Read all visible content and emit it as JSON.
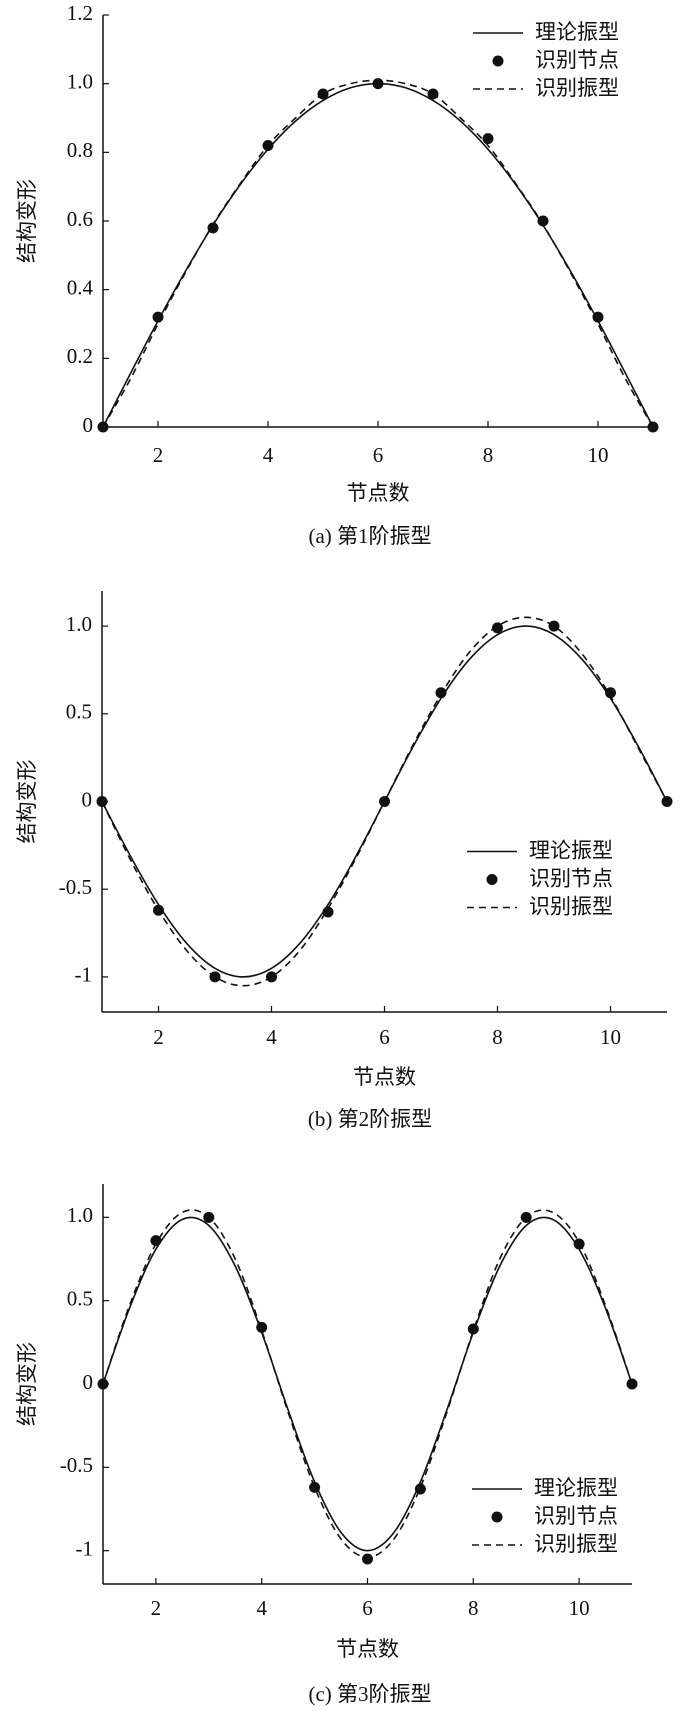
{
  "chart_data": [
    {
      "type": "line",
      "caption": "(a) 第1阶振型",
      "xlabel": "节点数",
      "ylabel": "结构变形",
      "xlim": [
        1,
        11
      ],
      "xticks": [
        2,
        4,
        6,
        8,
        10
      ],
      "ylim": [
        0,
        1.2
      ],
      "yticks": [
        0,
        0.2,
        0.4,
        0.6,
        0.8,
        {
          "value": 1,
          "label": "1.0"
        },
        1.2
      ],
      "legend": "upper right",
      "series": [
        {
          "name": "理论振型",
          "style": "solid",
          "color": "#111111",
          "x": [
            1,
            1.5,
            2,
            2.5,
            3,
            3.5,
            4,
            4.5,
            5,
            5.5,
            6,
            6.5,
            7,
            7.5,
            8,
            8.5,
            9,
            9.5,
            10,
            10.5,
            11
          ],
          "values": [
            0,
            0.156,
            0.309,
            0.454,
            0.588,
            0.707,
            0.809,
            0.891,
            0.951,
            0.988,
            1,
            0.988,
            0.951,
            0.891,
            0.809,
            0.707,
            0.588,
            0.454,
            0.309,
            0.156,
            0
          ]
        },
        {
          "name": "识别节点",
          "style": "markers",
          "color": "#111111",
          "x": [
            1,
            2,
            3,
            4,
            5,
            6,
            7,
            8,
            9,
            10,
            11
          ],
          "values": [
            0,
            0.32,
            0.58,
            0.82,
            0.97,
            1.0,
            0.97,
            0.84,
            0.6,
            0.32,
            0
          ]
        },
        {
          "name": "识别振型",
          "style": "dashed",
          "color": "#111111",
          "x": [
            1,
            1.5,
            2,
            2.5,
            3,
            3.5,
            4,
            4.5,
            5,
            5.5,
            6,
            6.5,
            7,
            7.5,
            8,
            8.5,
            9,
            9.5,
            10,
            10.5,
            11
          ],
          "values": [
            0,
            0.14,
            0.3,
            0.45,
            0.59,
            0.71,
            0.82,
            0.9,
            0.97,
            1.0,
            1.01,
            1.0,
            0.97,
            0.9,
            0.82,
            0.71,
            0.59,
            0.45,
            0.3,
            0.14,
            0
          ]
        }
      ]
    },
    {
      "type": "line",
      "caption": "(b) 第2阶振型",
      "xlabel": "节点数",
      "ylabel": "结构变形",
      "xlim": [
        1,
        11
      ],
      "xticks": [
        2,
        4,
        6,
        8,
        10
      ],
      "ylim": [
        -1.2,
        1.2
      ],
      "yticks": [
        -1,
        -0.5,
        0,
        0.5,
        {
          "value": 1,
          "label": "1.0"
        }
      ],
      "legend": "center right",
      "series": [
        {
          "name": "理论振型",
          "style": "solid",
          "color": "#111111",
          "x": [
            1,
            1.5,
            2,
            2.5,
            3,
            3.5,
            4,
            4.5,
            5,
            5.5,
            6,
            6.5,
            7,
            7.5,
            8,
            8.5,
            9,
            9.5,
            10,
            10.5,
            11
          ],
          "values": [
            0,
            -0.309,
            -0.588,
            -0.809,
            -0.951,
            -1,
            -0.951,
            -0.809,
            -0.588,
            -0.309,
            0,
            0.309,
            0.588,
            0.809,
            0.951,
            1,
            0.951,
            0.809,
            0.588,
            0.309,
            0
          ]
        },
        {
          "name": "识别节点",
          "style": "markers",
          "color": "#111111",
          "x": [
            1,
            2,
            3,
            4,
            5,
            6,
            7,
            8,
            9,
            10,
            11
          ],
          "values": [
            0,
            -0.62,
            -1.0,
            -1.0,
            -0.63,
            0,
            0.62,
            0.99,
            1.0,
            0.62,
            0
          ]
        },
        {
          "name": "识别振型",
          "style": "dashed",
          "color": "#111111",
          "x": [
            1,
            1.5,
            2,
            2.5,
            3,
            3.5,
            4,
            4.5,
            5,
            5.5,
            6,
            6.5,
            7,
            7.5,
            8,
            8.5,
            9,
            9.5,
            10,
            10.5,
            11
          ],
          "values": [
            0,
            -0.33,
            -0.62,
            -0.85,
            -1.0,
            -1.05,
            -1.0,
            -0.85,
            -0.61,
            -0.32,
            0,
            0.32,
            0.61,
            0.85,
            1.0,
            1.05,
            1.0,
            0.84,
            0.6,
            0.3,
            0
          ]
        }
      ]
    },
    {
      "type": "line",
      "caption": "(c) 第3阶振型",
      "xlabel": "节点数",
      "ylabel": "结构变形",
      "xlim": [
        1,
        11
      ],
      "xticks": [
        2,
        4,
        6,
        8,
        10
      ],
      "ylim": [
        -1.2,
        1.2
      ],
      "yticks": [
        -1,
        -0.5,
        0,
        0.5,
        {
          "value": 1,
          "label": "1.0"
        }
      ],
      "legend": "lower right",
      "series": [
        {
          "name": "理论振型",
          "style": "solid",
          "color": "#111111",
          "x": [
            1,
            1.5,
            2,
            2.5,
            3,
            3.5,
            4,
            4.5,
            5,
            5.5,
            6,
            6.5,
            7,
            7.5,
            8,
            8.5,
            9,
            9.5,
            10,
            10.5,
            11
          ],
          "values": [
            0,
            0.454,
            0.809,
            0.988,
            0.951,
            0.707,
            0.309,
            -0.156,
            -0.588,
            -0.891,
            -1,
            -0.891,
            -0.588,
            -0.156,
            0.309,
            0.707,
            0.951,
            0.988,
            0.809,
            0.454,
            0
          ]
        },
        {
          "name": "识别节点",
          "style": "markers",
          "color": "#111111",
          "x": [
            1,
            2,
            3,
            4,
            5,
            6,
            7,
            8,
            9,
            10,
            11
          ],
          "values": [
            0,
            0.86,
            1.0,
            0.34,
            -0.62,
            -1.05,
            -0.63,
            0.33,
            1.0,
            0.84,
            0
          ]
        },
        {
          "name": "识别振型",
          "style": "dashed",
          "color": "#111111",
          "x": [
            1,
            1.5,
            2,
            2.5,
            3,
            3.5,
            4,
            4.5,
            5,
            5.5,
            6,
            6.5,
            7,
            7.5,
            8,
            8.5,
            9,
            9.5,
            10,
            10.5,
            11
          ],
          "values": [
            0,
            0.47,
            0.84,
            1.03,
            1.0,
            0.75,
            0.32,
            -0.17,
            -0.62,
            -0.93,
            -1.04,
            -0.93,
            -0.62,
            -0.17,
            0.32,
            0.75,
            1.0,
            1.03,
            0.85,
            0.47,
            0
          ]
        }
      ]
    }
  ]
}
